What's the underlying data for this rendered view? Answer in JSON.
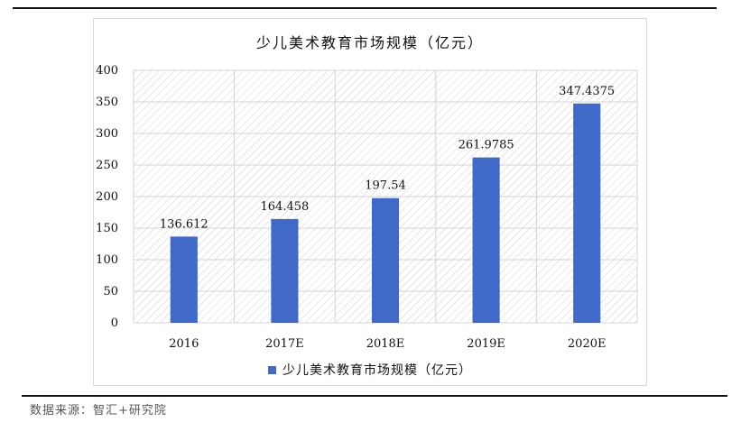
{
  "chart_data": {
    "type": "bar",
    "title": "少儿美术教育市场规模（亿元）",
    "categories": [
      "2016",
      "2017E",
      "2018E",
      "2019E",
      "2020E"
    ],
    "series": [
      {
        "name": "少儿美术教育市场规模（亿元）",
        "values": [
          136.612,
          164.458,
          197.54,
          261.9785,
          347.4375
        ],
        "labels": [
          "136.612",
          "164.458",
          "197.54",
          "261.9785",
          "347.4375"
        ],
        "color": "#4169c8"
      }
    ],
    "yticks": [
      "0",
      "50",
      "100",
      "150",
      "200",
      "250",
      "300",
      "350",
      "400"
    ],
    "ylim": [
      0,
      400
    ],
    "grid": true,
    "plot_fill": "hatched",
    "legend": "bottom"
  },
  "source": "数据来源：智汇+研究院"
}
